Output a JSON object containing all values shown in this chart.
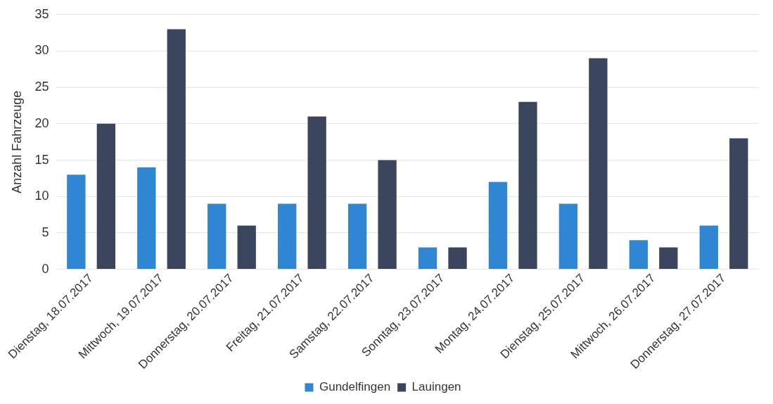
{
  "chart_data": {
    "type": "bar",
    "ylabel": "Anzahl Fahrzeuge",
    "categories": [
      "Dienstag, 18.07.2017",
      "Mittwoch, 19.07.2017",
      "Donnerstag, 20.07.2017",
      "Freitag, 21.07.2017",
      "Samstag, 22.07.2017",
      "Sonntag, 23.07.2017",
      "Montag, 24.07.2017",
      "Dienstag, 25.07.2017",
      "Mittwoch, 26.07.2017",
      "Donnerstag, 27.07.2017"
    ],
    "series": [
      {
        "name": "Gundelfingen",
        "color": "#2f86d2",
        "values": [
          13,
          14,
          9,
          9,
          9,
          3,
          12,
          9,
          4,
          6
        ]
      },
      {
        "name": "Lauingen",
        "color": "#3b465e",
        "values": [
          20,
          33,
          6,
          21,
          15,
          3,
          23,
          29,
          3,
          18
        ]
      }
    ],
    "ylim": [
      0,
      35
    ],
    "yticks": [
      0,
      5,
      10,
      15,
      20,
      25,
      30,
      35
    ],
    "grid": "y",
    "legend": "bottom"
  }
}
